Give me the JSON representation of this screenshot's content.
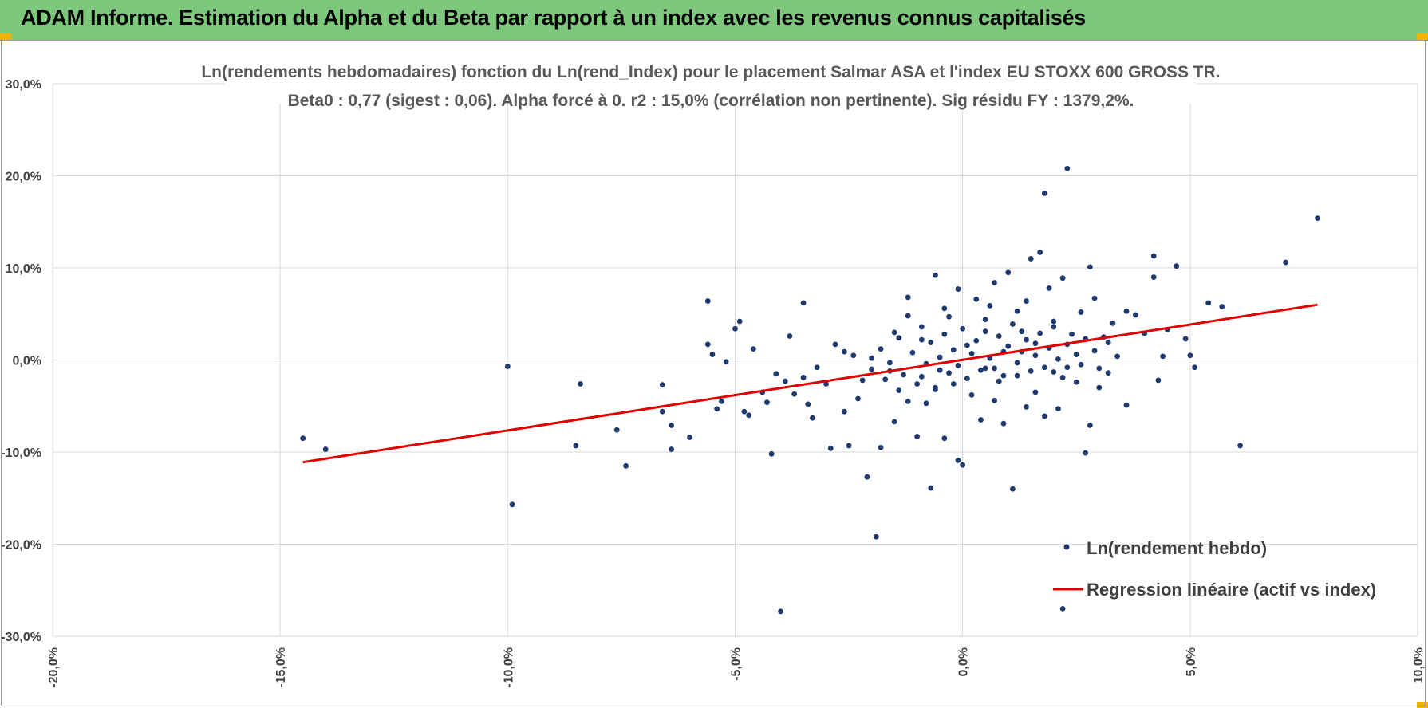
{
  "banner": {
    "title": "ADAM Informe. Estimation du Alpha et du Beta par rapport à un index avec les revenus connus capitalisés"
  },
  "colors": {
    "banner": "#7ec87e",
    "points": "#1f3a6e",
    "regression": "#e00000",
    "grid": "#d9d9d9"
  },
  "chart_data": {
    "type": "scatter",
    "title": "Ln(rendements hebdomadaires) fonction du Ln(rend_Index) pour le placement Salmar ASA et l'index EU STOXX 600 GROSS TR.",
    "subtitle": "Beta0 : 0,77 (sigest : 0,06).  Alpha forcé à 0. r2 : 15,0% (corrélation non pertinente). Sig résidu FY : 1379,2%.",
    "xlabel": "",
    "ylabel": "",
    "xlim": [
      -20,
      10
    ],
    "ylim": [
      -30,
      30
    ],
    "x_ticks": [
      -20,
      -15,
      -10,
      -5,
      0,
      5,
      10
    ],
    "x_tick_labels": [
      "-20,0%",
      "-15,0%",
      "-10,0%",
      "-5,0%",
      "0,0%",
      "5,0%",
      "10,0%"
    ],
    "y_ticks": [
      -30,
      -20,
      -10,
      0,
      10,
      20,
      30
    ],
    "y_tick_labels": [
      "-30,0%",
      "-20,0%",
      "-10,0%",
      "0,0%",
      "10,0%",
      "20,0%",
      "30,0%"
    ],
    "grid": true,
    "legend": {
      "position": "bottom-right",
      "entries": [
        "Ln(rendement hebdo)",
        "Regression linéaire (actif vs index)"
      ]
    },
    "series": [
      {
        "name": "Ln(rendement hebdo)",
        "kind": "scatter",
        "color": "#1f3a6e",
        "points": [
          [
            -14.5,
            -8.5
          ],
          [
            -14.0,
            -9.7
          ],
          [
            -10.0,
            -0.7
          ],
          [
            -9.9,
            -15.7
          ],
          [
            -8.4,
            -2.6
          ],
          [
            -8.5,
            -9.3
          ],
          [
            -7.6,
            -7.6
          ],
          [
            -7.4,
            -11.5
          ],
          [
            -6.6,
            -5.6
          ],
          [
            -6.6,
            -2.7
          ],
          [
            -6.4,
            -7.1
          ],
          [
            -6.4,
            -9.7
          ],
          [
            -6.0,
            -8.4
          ],
          [
            -5.6,
            6.4
          ],
          [
            -5.6,
            1.7
          ],
          [
            -5.5,
            0.6
          ],
          [
            -5.4,
            -5.3
          ],
          [
            -5.3,
            -4.5
          ],
          [
            -5.2,
            -0.2
          ],
          [
            -5.0,
            3.4
          ],
          [
            -4.9,
            4.2
          ],
          [
            -4.8,
            -5.6
          ],
          [
            -4.7,
            -6.0
          ],
          [
            -4.6,
            1.2
          ],
          [
            -4.4,
            -3.5
          ],
          [
            -4.3,
            -4.6
          ],
          [
            -4.2,
            -10.2
          ],
          [
            -4.1,
            -1.5
          ],
          [
            -4.0,
            -27.3
          ],
          [
            -3.9,
            -2.3
          ],
          [
            -3.8,
            2.6
          ],
          [
            -3.7,
            -3.7
          ],
          [
            -3.5,
            6.2
          ],
          [
            -3.5,
            -1.9
          ],
          [
            -3.4,
            -4.8
          ],
          [
            -3.3,
            -6.3
          ],
          [
            -3.2,
            -0.8
          ],
          [
            -3.0,
            -2.6
          ],
          [
            -2.9,
            -9.6
          ],
          [
            -2.8,
            1.7
          ],
          [
            -2.6,
            -5.6
          ],
          [
            -2.5,
            -9.3
          ],
          [
            -2.3,
            -4.2
          ],
          [
            -2.2,
            -2.2
          ],
          [
            -2.1,
            -12.7
          ],
          [
            -2.0,
            0.2
          ],
          [
            -1.9,
            -19.2
          ],
          [
            -1.8,
            -9.5
          ],
          [
            -1.6,
            -1.2
          ],
          [
            -1.5,
            -6.7
          ],
          [
            -1.4,
            -3.3
          ],
          [
            -1.2,
            -4.5
          ],
          [
            -1.0,
            -8.3
          ],
          [
            -0.9,
            -1.8
          ],
          [
            -0.8,
            -4.7
          ],
          [
            -0.7,
            -13.9
          ],
          [
            -0.6,
            -3.2
          ],
          [
            -0.5,
            -1.1
          ],
          [
            -0.4,
            -8.5
          ],
          [
            -0.2,
            -2.6
          ],
          [
            -0.1,
            -10.9
          ],
          [
            0.0,
            -11.4
          ],
          [
            0.2,
            -3.8
          ],
          [
            0.4,
            -6.5
          ],
          [
            0.5,
            -0.9
          ],
          [
            0.7,
            -4.4
          ],
          [
            0.8,
            -2.3
          ],
          [
            0.9,
            -6.9
          ],
          [
            1.1,
            -14.0
          ],
          [
            1.2,
            -1.7
          ],
          [
            1.4,
            -5.1
          ],
          [
            1.6,
            -3.5
          ],
          [
            1.8,
            -6.1
          ],
          [
            2.0,
            -1.3
          ],
          [
            2.1,
            -5.3
          ],
          [
            2.2,
            -27.0
          ],
          [
            2.3,
            -0.8
          ],
          [
            2.5,
            -2.4
          ],
          [
            2.7,
            -10.1
          ],
          [
            2.8,
            -7.1
          ],
          [
            3.0,
            -3.0
          ],
          [
            3.2,
            -1.4
          ],
          [
            3.6,
            -4.9
          ],
          [
            4.3,
            -2.2
          ],
          [
            5.1,
            -0.8
          ],
          [
            6.1,
            -9.3
          ],
          [
            -1.5,
            3.0
          ],
          [
            -1.2,
            6.8
          ],
          [
            -0.9,
            2.2
          ],
          [
            -0.6,
            9.2
          ],
          [
            -0.3,
            4.7
          ],
          [
            -0.1,
            7.7
          ],
          [
            0.1,
            1.6
          ],
          [
            0.3,
            6.6
          ],
          [
            0.5,
            3.1
          ],
          [
            0.7,
            8.4
          ],
          [
            0.9,
            0.9
          ],
          [
            1.0,
            9.5
          ],
          [
            1.2,
            5.3
          ],
          [
            1.3,
            3.1
          ],
          [
            1.5,
            11.0
          ],
          [
            1.6,
            1.8
          ],
          [
            1.7,
            11.7
          ],
          [
            1.8,
            18.1
          ],
          [
            1.9,
            7.8
          ],
          [
            2.0,
            4.2
          ],
          [
            2.2,
            8.9
          ],
          [
            2.3,
            20.8
          ],
          [
            2.4,
            2.8
          ],
          [
            2.6,
            5.2
          ],
          [
            2.8,
            10.1
          ],
          [
            2.9,
            6.7
          ],
          [
            3.1,
            2.5
          ],
          [
            3.3,
            4.0
          ],
          [
            3.6,
            5.3
          ],
          [
            3.8,
            4.9
          ],
          [
            4.0,
            2.9
          ],
          [
            4.2,
            11.3
          ],
          [
            4.2,
            9.0
          ],
          [
            4.4,
            0.4
          ],
          [
            4.5,
            3.3
          ],
          [
            4.7,
            10.2
          ],
          [
            4.9,
            2.3
          ],
          [
            5.0,
            0.5
          ],
          [
            5.4,
            6.2
          ],
          [
            5.7,
            5.8
          ],
          [
            7.1,
            10.6
          ],
          [
            7.8,
            15.4
          ],
          [
            -1.8,
            1.2
          ],
          [
            -1.6,
            -0.3
          ],
          [
            -1.4,
            2.4
          ],
          [
            -1.3,
            -1.6
          ],
          [
            -1.1,
            0.8
          ],
          [
            -1.0,
            -2.6
          ],
          [
            -0.9,
            3.6
          ],
          [
            -0.8,
            -0.4
          ],
          [
            -0.7,
            1.9
          ],
          [
            -0.6,
            -3.0
          ],
          [
            -0.5,
            0.3
          ],
          [
            -0.4,
            2.8
          ],
          [
            -0.3,
            -1.4
          ],
          [
            -0.2,
            1.1
          ],
          [
            -0.1,
            -0.6
          ],
          [
            0.0,
            3.4
          ],
          [
            0.1,
            -2.0
          ],
          [
            0.2,
            0.7
          ],
          [
            0.3,
            2.1
          ],
          [
            0.4,
            -1.1
          ],
          [
            0.5,
            4.4
          ],
          [
            0.6,
            0.2
          ],
          [
            0.7,
            -0.9
          ],
          [
            0.8,
            2.6
          ],
          [
            0.9,
            -1.7
          ],
          [
            1.0,
            1.5
          ],
          [
            1.1,
            3.9
          ],
          [
            1.2,
            -0.3
          ],
          [
            1.3,
            0.9
          ],
          [
            1.4,
            2.2
          ],
          [
            1.5,
            -1.2
          ],
          [
            1.6,
            0.5
          ],
          [
            1.7,
            2.9
          ],
          [
            1.8,
            -0.8
          ],
          [
            1.9,
            1.3
          ],
          [
            2.0,
            3.6
          ],
          [
            2.1,
            0.1
          ],
          [
            2.2,
            -1.9
          ],
          [
            2.3,
            1.7
          ],
          [
            2.5,
            0.6
          ],
          [
            2.6,
            -0.5
          ],
          [
            2.7,
            2.3
          ],
          [
            2.9,
            1.0
          ],
          [
            3.0,
            -0.9
          ],
          [
            3.2,
            1.9
          ],
          [
            3.4,
            0.4
          ],
          [
            -2.4,
            0.5
          ],
          [
            -2.0,
            -1.0
          ],
          [
            -2.6,
            0.9
          ],
          [
            -1.7,
            -2.1
          ],
          [
            -1.2,
            4.8
          ],
          [
            -0.4,
            5.6
          ],
          [
            0.6,
            5.9
          ],
          [
            1.4,
            6.4
          ]
        ]
      },
      {
        "name": "Regression linéaire (actif vs index)",
        "kind": "line",
        "color": "#e00000",
        "x": [
          -14.5,
          7.8
        ],
        "y": [
          -11.1,
          6.0
        ]
      }
    ]
  }
}
